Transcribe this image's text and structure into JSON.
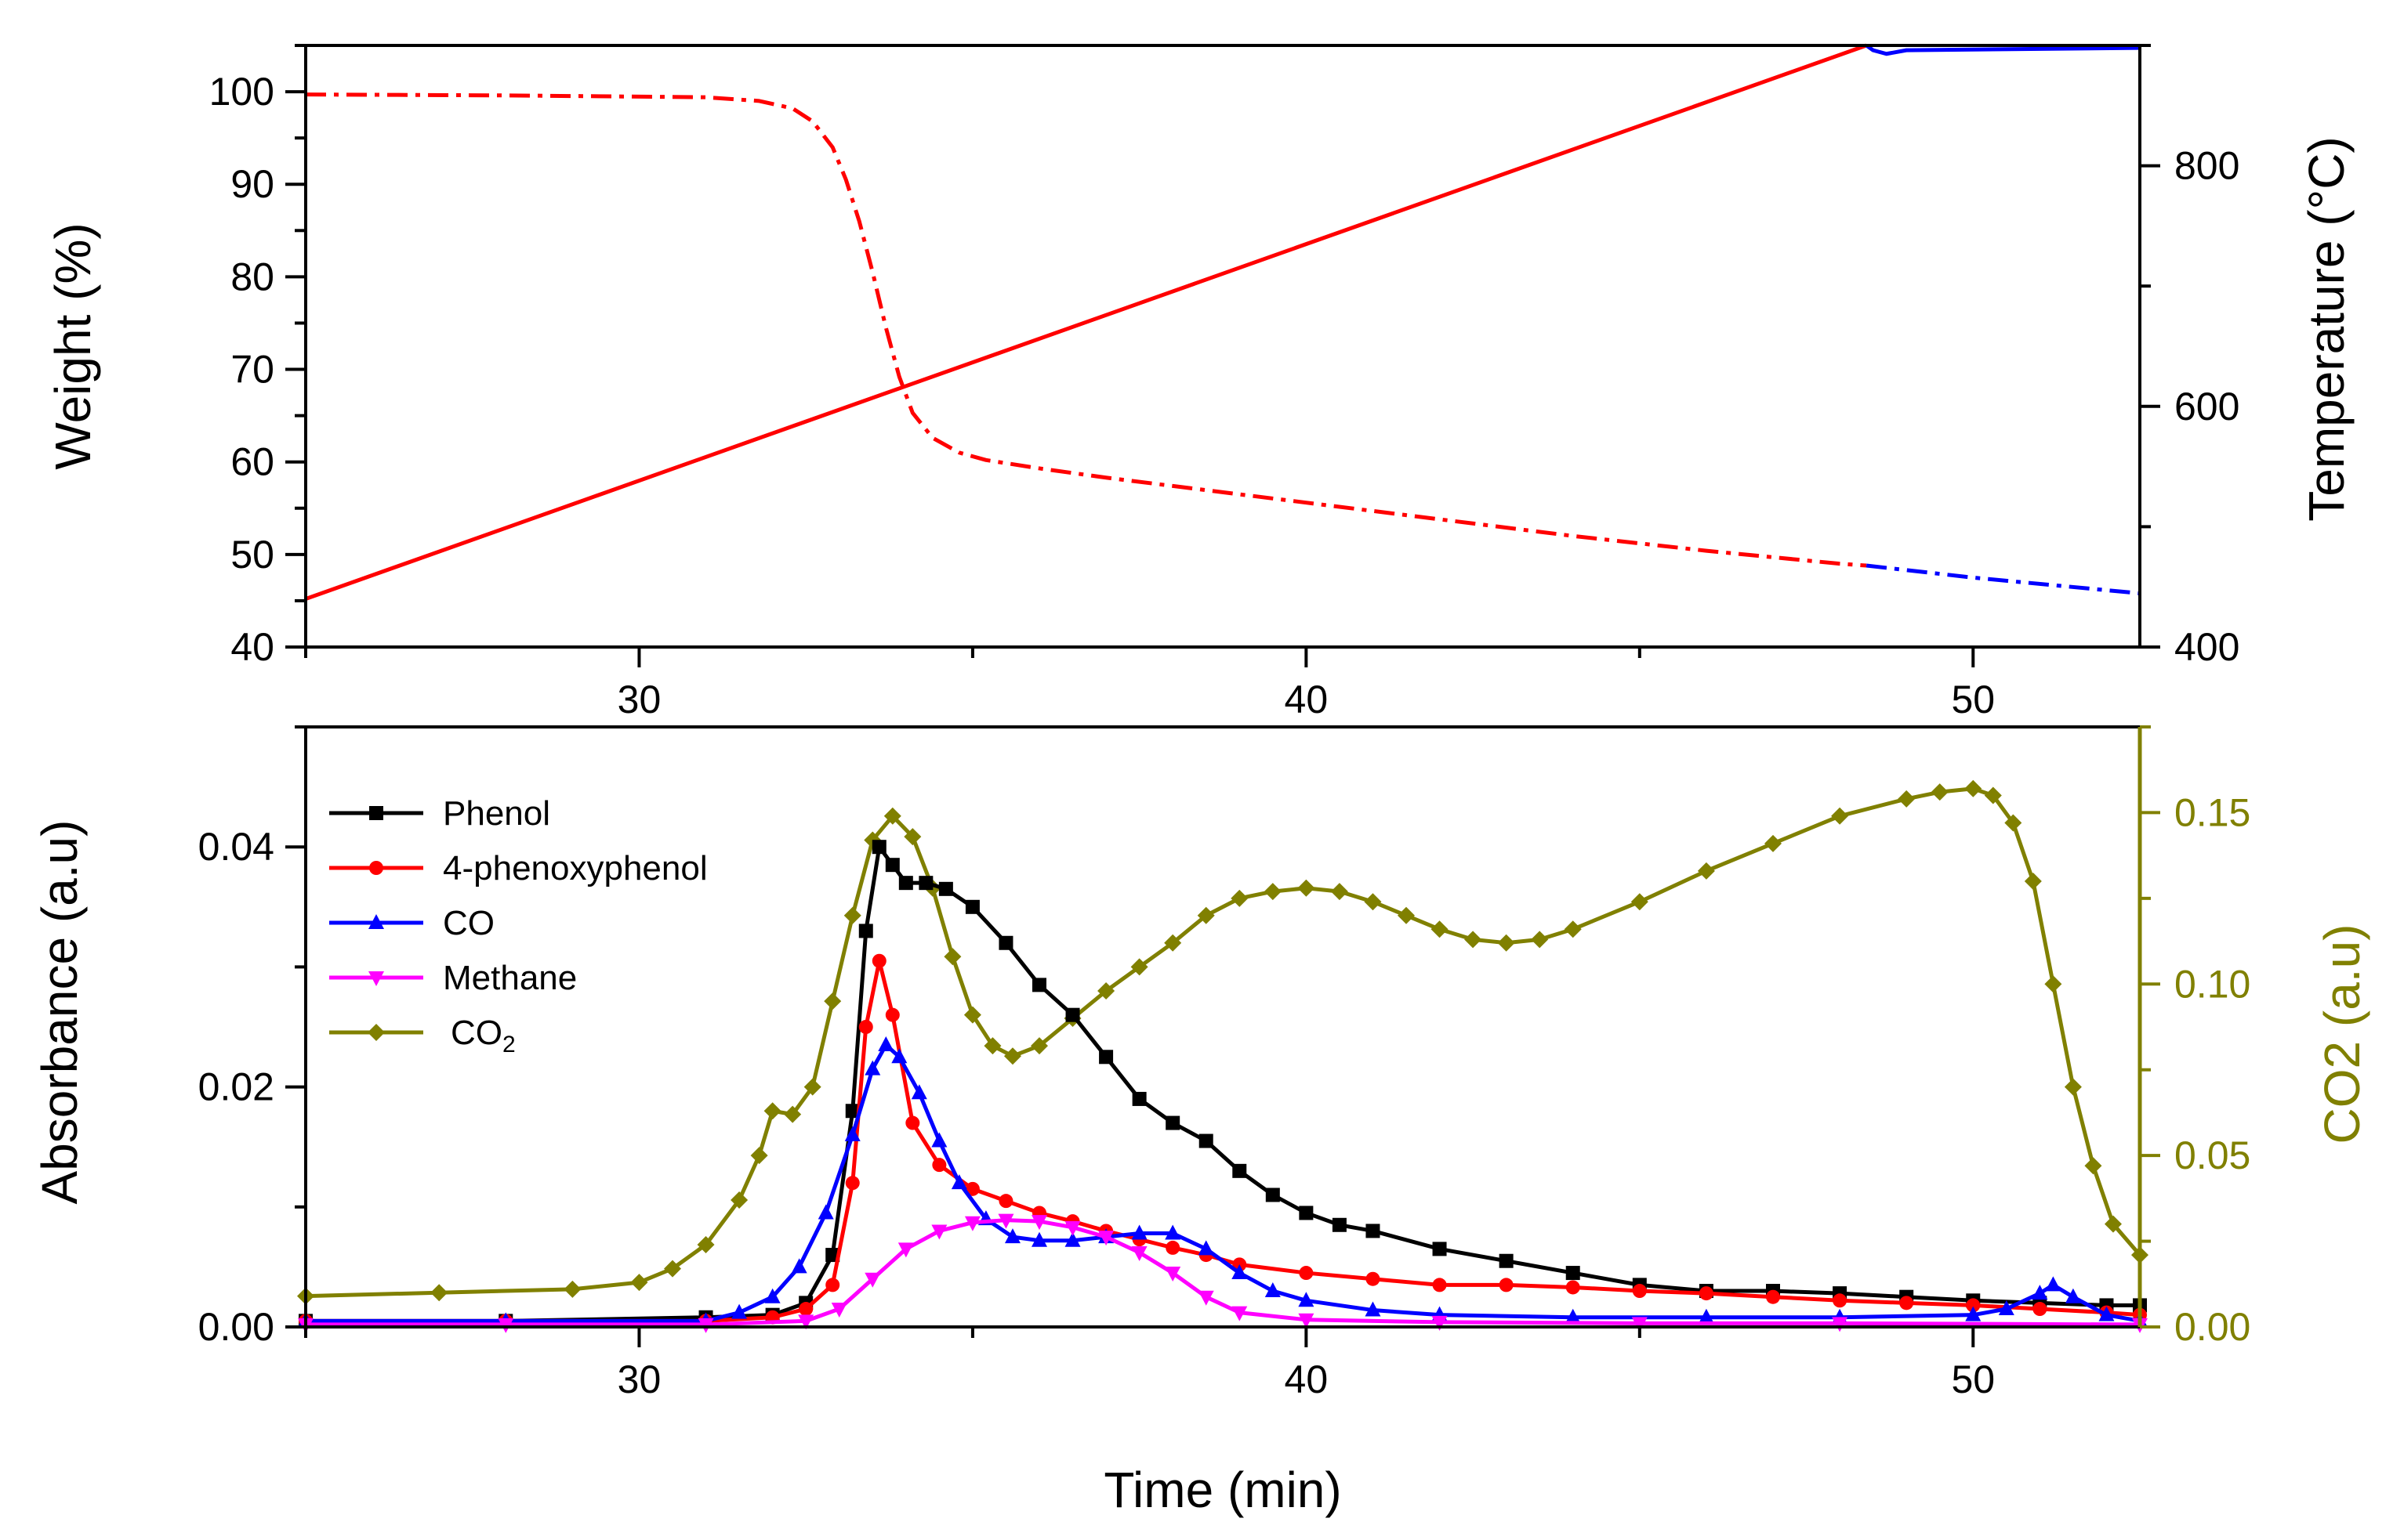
{
  "chart_data": [
    {
      "id": "top",
      "type": "line",
      "xlim": [
        25,
        52.5
      ],
      "xticks": [
        30,
        40,
        50
      ],
      "ylabel": "Weight (%)",
      "ylim": [
        40,
        105
      ],
      "yticks": [
        40,
        50,
        60,
        70,
        80,
        90,
        100
      ],
      "y2label": "Temperature (°C)",
      "y2lim": [
        400,
        900
      ],
      "y2ticks": [
        400,
        600,
        800
      ],
      "series": [
        {
          "name": "Weight",
          "axis": "left",
          "style": "dashdot",
          "color": "#ff0000",
          "color_after": "#0000ff",
          "color_change_x": 48.4,
          "x": [
            25,
            28,
            31,
            31.8,
            32.3,
            32.6,
            32.9,
            33.1,
            33.3,
            33.5,
            33.7,
            33.9,
            34.1,
            34.4,
            34.8,
            35.2,
            36,
            37,
            38,
            40,
            42,
            44,
            46,
            48,
            48.4,
            50,
            52.5
          ],
          "y": [
            99.7,
            99.6,
            99.4,
            99.0,
            98.2,
            96.8,
            94.0,
            90.5,
            86.0,
            80.5,
            74.5,
            69.2,
            65.3,
            62.6,
            61.0,
            60.2,
            59.3,
            58.3,
            57.4,
            55.6,
            53.8,
            52.0,
            50.4,
            49.0,
            48.8,
            47.5,
            45.8
          ]
        },
        {
          "name": "Temperature",
          "axis": "right",
          "style": "solid",
          "color": "#ff0000",
          "color_after": "#0000ff",
          "color_change_x": 48.4,
          "x": [
            25,
            48.4,
            48.5,
            48.7,
            49,
            52.5
          ],
          "y": [
            440,
            900,
            896,
            893,
            896,
            898
          ]
        }
      ]
    },
    {
      "id": "bottom",
      "type": "line",
      "xlabel": "Time (min)",
      "xlim": [
        25,
        52.5
      ],
      "xticks": [
        30,
        40,
        50
      ],
      "ylabel": "Absorbance (a.u)",
      "ylim": [
        0,
        0.05
      ],
      "yticks": [
        0.0,
        0.02,
        0.04
      ],
      "ytick_labels": [
        "0.00",
        "0.02",
        "0.04"
      ],
      "y2label": "CO2 (a.u)",
      "y2lim": [
        0,
        0.175
      ],
      "y2ticks": [
        0.0,
        0.05,
        0.1,
        0.15
      ],
      "y2tick_labels": [
        "0.00",
        "0.05",
        "0.10",
        "0.15"
      ],
      "legend_position": "top-left",
      "series": [
        {
          "name": "Phenol",
          "marker": "square",
          "color": "#000000",
          "axis": "left",
          "x": [
            25,
            28,
            31,
            32,
            32.5,
            32.9,
            33.2,
            33.4,
            33.6,
            33.8,
            34,
            34.3,
            34.6,
            35,
            35.5,
            36,
            36.5,
            37,
            37.5,
            38,
            38.5,
            39,
            39.5,
            40,
            40.5,
            41,
            42,
            43,
            44,
            45,
            46,
            47,
            48,
            49,
            50,
            51,
            52,
            52.5
          ],
          "y": [
            0.0005,
            0.0005,
            0.0008,
            0.001,
            0.002,
            0.006,
            0.018,
            0.033,
            0.04,
            0.0385,
            0.037,
            0.037,
            0.0365,
            0.035,
            0.032,
            0.0285,
            0.026,
            0.0225,
            0.019,
            0.017,
            0.0155,
            0.013,
            0.011,
            0.0095,
            0.0085,
            0.008,
            0.0065,
            0.0055,
            0.0045,
            0.0035,
            0.003,
            0.003,
            0.0028,
            0.0025,
            0.0022,
            0.002,
            0.0018,
            0.0018
          ]
        },
        {
          "name": "4-phenoxyphenol",
          "marker": "circle",
          "color": "#ff0000",
          "axis": "left",
          "x": [
            25,
            28,
            31,
            32,
            32.5,
            32.9,
            33.2,
            33.4,
            33.6,
            33.8,
            34.1,
            34.5,
            35,
            35.5,
            36,
            36.5,
            37,
            37.5,
            38,
            38.5,
            39,
            40,
            41,
            42,
            43,
            44,
            45,
            46,
            47,
            48,
            49,
            50,
            51,
            52,
            52.5
          ],
          "y": [
            0.0005,
            0.0005,
            0.0005,
            0.0008,
            0.0015,
            0.0035,
            0.012,
            0.025,
            0.0305,
            0.026,
            0.017,
            0.0135,
            0.0115,
            0.0105,
            0.0095,
            0.0088,
            0.008,
            0.0073,
            0.0066,
            0.006,
            0.0052,
            0.0045,
            0.004,
            0.0035,
            0.0035,
            0.0033,
            0.003,
            0.0028,
            0.0025,
            0.0022,
            0.002,
            0.0018,
            0.0015,
            0.0012,
            0.001
          ]
        },
        {
          "name": "CO",
          "marker": "triangle-up",
          "color": "#0000ff",
          "axis": "left",
          "x": [
            25,
            28,
            31,
            31.5,
            32,
            32.4,
            32.8,
            33.2,
            33.5,
            33.7,
            33.9,
            34.2,
            34.5,
            34.8,
            35.2,
            35.6,
            36,
            36.5,
            37,
            37.5,
            38,
            38.5,
            39,
            39.5,
            40,
            41,
            42,
            44,
            46,
            48,
            50,
            50.5,
            51,
            51.2,
            51.5,
            52,
            52.5
          ],
          "y": [
            0.0005,
            0.0005,
            0.0005,
            0.0012,
            0.0025,
            0.005,
            0.0095,
            0.016,
            0.0215,
            0.0235,
            0.0225,
            0.0195,
            0.0155,
            0.012,
            0.009,
            0.0075,
            0.0072,
            0.0072,
            0.0075,
            0.0078,
            0.0078,
            0.0065,
            0.0045,
            0.003,
            0.0022,
            0.0014,
            0.001,
            0.0008,
            0.0008,
            0.0008,
            0.001,
            0.0015,
            0.0028,
            0.0035,
            0.0025,
            0.001,
            0.0005
          ]
        },
        {
          "name": "Methane",
          "marker": "triangle-down",
          "color": "#ff00ff",
          "axis": "left",
          "x": [
            25,
            28,
            31,
            32.5,
            33,
            33.5,
            34,
            34.5,
            35,
            35.5,
            36,
            36.5,
            37,
            37.5,
            38,
            38.5,
            39,
            40,
            42,
            45,
            48,
            52.5
          ],
          "y": [
            0.0002,
            0.0002,
            0.0002,
            0.0005,
            0.0015,
            0.004,
            0.0065,
            0.008,
            0.0087,
            0.0089,
            0.0088,
            0.0083,
            0.0075,
            0.0062,
            0.0045,
            0.0025,
            0.0012,
            0.0006,
            0.0004,
            0.0003,
            0.0003,
            0.0002
          ]
        },
        {
          "name": "CO2",
          "legend_label_main": "CO",
          "legend_label_sub": "2",
          "marker": "diamond",
          "color": "#808000",
          "axis": "right",
          "x": [
            25,
            27,
            29,
            30,
            30.5,
            31,
            31.5,
            31.8,
            32,
            32.3,
            32.6,
            32.9,
            33.2,
            33.5,
            33.8,
            34.1,
            34.4,
            34.7,
            35,
            35.3,
            35.6,
            36,
            36.5,
            37,
            37.5,
            38,
            38.5,
            39,
            39.5,
            40,
            40.5,
            41,
            41.5,
            42,
            42.5,
            43,
            43.5,
            44,
            45,
            46,
            47,
            48,
            49,
            49.5,
            50,
            50.3,
            50.6,
            50.9,
            51.2,
            51.5,
            51.8,
            52.1,
            52.5
          ],
          "y": [
            0.009,
            0.01,
            0.011,
            0.013,
            0.017,
            0.024,
            0.037,
            0.05,
            0.063,
            0.062,
            0.07,
            0.095,
            0.12,
            0.142,
            0.149,
            0.143,
            0.128,
            0.108,
            0.091,
            0.082,
            0.079,
            0.082,
            0.09,
            0.098,
            0.105,
            0.112,
            0.12,
            0.125,
            0.127,
            0.128,
            0.127,
            0.124,
            0.12,
            0.116,
            0.113,
            0.112,
            0.113,
            0.116,
            0.124,
            0.133,
            0.141,
            0.149,
            0.154,
            0.156,
            0.157,
            0.155,
            0.147,
            0.13,
            0.1,
            0.07,
            0.047,
            0.03,
            0.021
          ]
        }
      ]
    }
  ]
}
